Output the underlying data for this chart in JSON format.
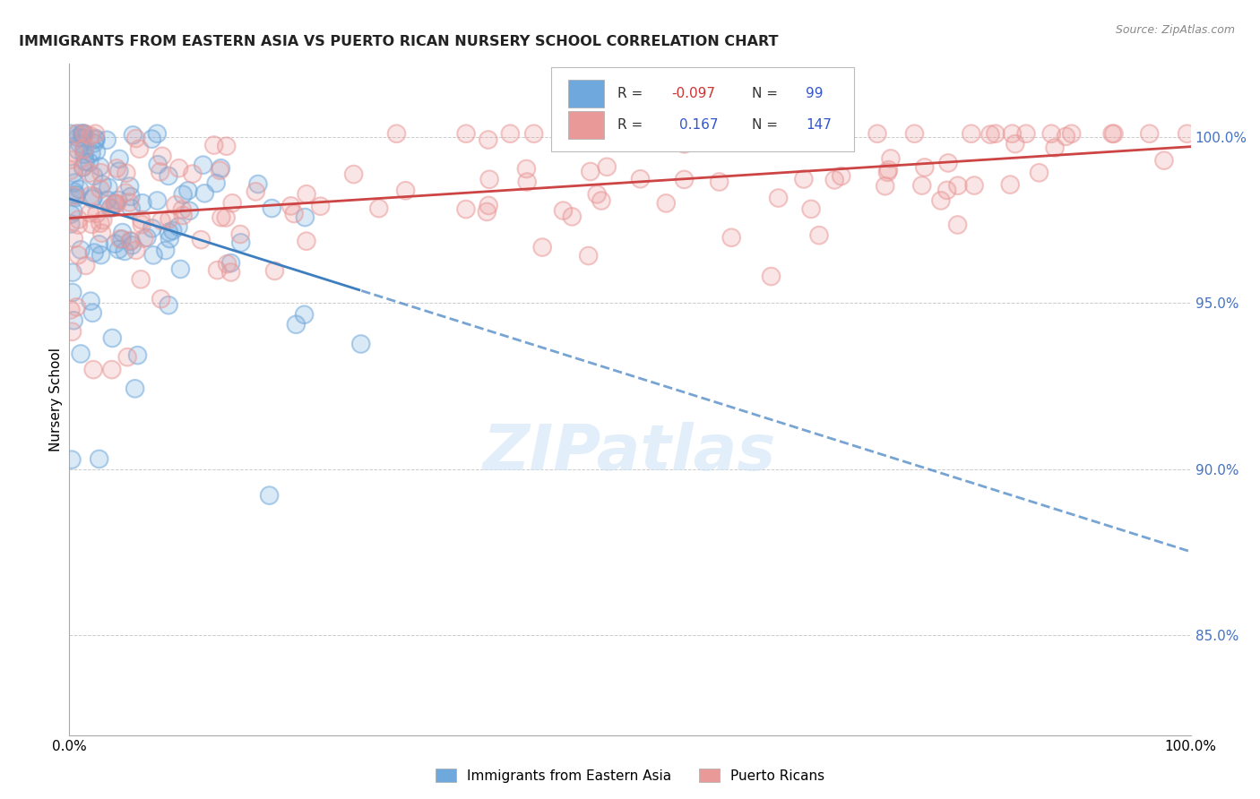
{
  "title": "IMMIGRANTS FROM EASTERN ASIA VS PUERTO RICAN NURSERY SCHOOL CORRELATION CHART",
  "source": "Source: ZipAtlas.com",
  "ylabel": "Nursery School",
  "right_ytick_vals": [
    1.0,
    0.95,
    0.9,
    0.85
  ],
  "right_ytick_labels": [
    "100.0%",
    "95.0%",
    "90.0%",
    "85.0%"
  ],
  "xlim": [
    0.0,
    1.0
  ],
  "ylim": [
    0.82,
    1.022
  ],
  "legend_r_blue": "-0.097",
  "legend_n_blue": "99",
  "legend_r_pink": "0.167",
  "legend_n_pink": "147",
  "blue_color": "#6fa8dc",
  "pink_color": "#ea9999",
  "trendline_blue_color": "#3d7ebf",
  "trendline_pink_color": "#cc4444",
  "blue_scatter_seed": 42,
  "pink_scatter_seed": 99,
  "watermark": "ZIPatlas",
  "bottom_legend_blue": "Immigrants from Eastern Asia",
  "bottom_legend_pink": "Puerto Ricans"
}
